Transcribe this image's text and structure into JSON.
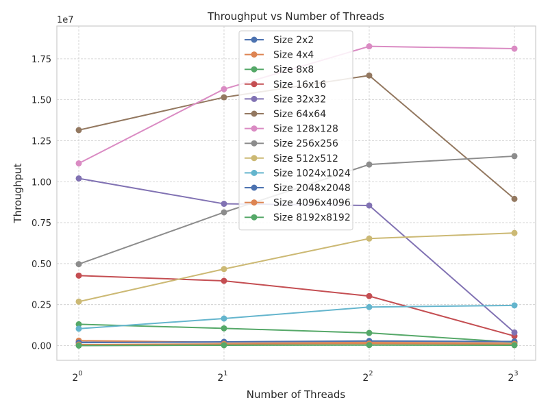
{
  "chart_data": {
    "type": "line",
    "title": "Throughput vs Number of Threads",
    "xlabel": "Number of Threads",
    "ylabel": "Throughput",
    "x_scale": "log2",
    "x": [
      1,
      2,
      4,
      8
    ],
    "x_tick_labels": [
      {
        "base": "2",
        "exp": "0"
      },
      {
        "base": "2",
        "exp": "1"
      },
      {
        "base": "2",
        "exp": "2"
      },
      {
        "base": "2",
        "exp": "3"
      }
    ],
    "y_offset_label": "1e7",
    "y_multiplier": 10000000,
    "y_ticks": [
      0.0,
      0.25,
      0.5,
      0.75,
      1.0,
      1.25,
      1.5,
      1.75
    ],
    "y_tick_labels": [
      "0.00",
      "0.25",
      "0.50",
      "0.75",
      "1.00",
      "1.25",
      "1.50",
      "1.75"
    ],
    "ylim": [
      -0.09,
      1.95
    ],
    "grid": true,
    "legend_position": "top-center",
    "series": [
      {
        "name": "Size 2x2",
        "color": "#4c72b0",
        "values": [
          0.02,
          0.02,
          0.02,
          0.02
        ]
      },
      {
        "name": "Size 4x4",
        "color": "#dd8452",
        "values": [
          0.03,
          0.02,
          0.02,
          0.02
        ]
      },
      {
        "name": "Size 8x8",
        "color": "#55a868",
        "values": [
          0.13,
          0.105,
          0.077,
          0.02
        ]
      },
      {
        "name": "Size 16x16",
        "color": "#c44e52",
        "values": [
          0.427,
          0.395,
          0.302,
          0.058
        ]
      },
      {
        "name": "Size 32x32",
        "color": "#8172b3",
        "values": [
          1.02,
          0.865,
          0.855,
          0.08
        ]
      },
      {
        "name": "Size 64x64",
        "color": "#937860",
        "values": [
          1.315,
          1.515,
          1.648,
          0.895
        ]
      },
      {
        "name": "Size 128x128",
        "color": "#da8bc3",
        "values": [
          1.112,
          1.565,
          1.826,
          1.812
        ]
      },
      {
        "name": "Size 256x256",
        "color": "#8c8c8c",
        "values": [
          0.497,
          0.813,
          1.105,
          1.156
        ]
      },
      {
        "name": "Size 512x512",
        "color": "#ccb974",
        "values": [
          0.268,
          0.467,
          0.653,
          0.687
        ]
      },
      {
        "name": "Size 1024x1024",
        "color": "#64b5cd",
        "values": [
          0.103,
          0.165,
          0.235,
          0.245
        ]
      },
      {
        "name": "Size 2048x2048",
        "color": "#4c72b0",
        "values": [
          0.018,
          0.023,
          0.028,
          0.025
        ]
      },
      {
        "name": "Size 4096x4096",
        "color": "#dd8452",
        "values": [
          0.006,
          0.01,
          0.012,
          0.01
        ]
      },
      {
        "name": "Size 8192x8192",
        "color": "#55a868",
        "values": [
          0.0,
          0.002,
          0.003,
          0.002
        ]
      }
    ]
  }
}
